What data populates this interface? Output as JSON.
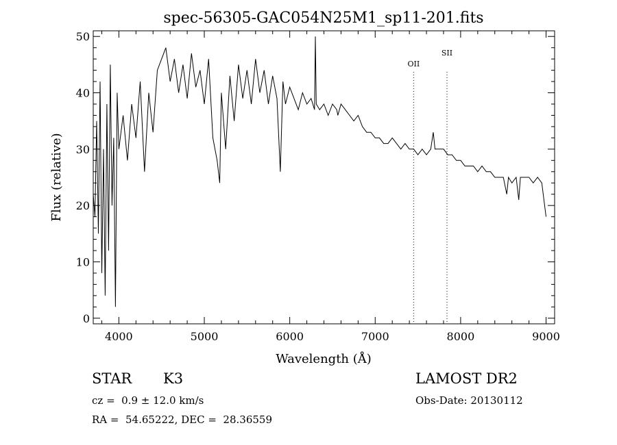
{
  "chart_data": {
    "type": "line",
    "title": "spec-56305-GAC054N25M1_sp11-201.fits",
    "xlabel": "Wavelength (Å)",
    "ylabel": "Flux (relative)",
    "xlim": [
      3700,
      9100
    ],
    "ylim": [
      -1,
      51
    ],
    "xticks": [
      4000,
      5000,
      6000,
      7000,
      8000,
      9000
    ],
    "yticks": [
      0,
      10,
      20,
      30,
      40,
      50
    ],
    "grid": false,
    "x": [
      3700,
      3720,
      3740,
      3760,
      3780,
      3800,
      3820,
      3840,
      3860,
      3880,
      3900,
      3920,
      3940,
      3960,
      3980,
      4000,
      4050,
      4100,
      4150,
      4200,
      4250,
      4300,
      4350,
      4400,
      4450,
      4500,
      4550,
      4600,
      4650,
      4700,
      4750,
      4800,
      4850,
      4900,
      4950,
      5000,
      5050,
      5100,
      5150,
      5180,
      5200,
      5250,
      5300,
      5350,
      5400,
      5450,
      5500,
      5550,
      5600,
      5650,
      5700,
      5750,
      5800,
      5850,
      5890,
      5920,
      5950,
      6000,
      6050,
      6100,
      6150,
      6200,
      6250,
      6290,
      6300,
      6310,
      6350,
      6400,
      6450,
      6500,
      6550,
      6563,
      6600,
      6650,
      6700,
      6750,
      6800,
      6850,
      6900,
      6950,
      7000,
      7050,
      7100,
      7150,
      7200,
      7250,
      7300,
      7350,
      7400,
      7450,
      7500,
      7550,
      7600,
      7650,
      7680,
      7700,
      7750,
      7800,
      7850,
      7900,
      7950,
      8000,
      8050,
      8100,
      8150,
      8200,
      8250,
      8300,
      8350,
      8400,
      8450,
      8500,
      8540,
      8560,
      8600,
      8650,
      8680,
      8700,
      8750,
      8800,
      8850,
      8900,
      8950,
      9000
    ],
    "y": [
      22,
      18,
      35,
      15,
      42,
      8,
      30,
      4,
      38,
      12,
      45,
      20,
      32,
      2,
      40,
      30,
      36,
      28,
      38,
      32,
      42,
      26,
      40,
      33,
      44,
      46,
      48,
      42,
      46,
      40,
      45,
      39,
      47,
      41,
      44,
      38,
      46,
      32,
      28,
      24,
      40,
      30,
      43,
      35,
      45,
      39,
      44,
      38,
      46,
      40,
      44,
      38,
      43,
      39,
      26,
      42,
      38,
      41,
      39,
      37,
      40,
      38,
      39,
      37,
      50,
      38,
      37,
      38,
      36,
      38,
      37,
      36,
      38,
      37,
      36,
      35,
      36,
      34,
      33,
      33,
      32,
      32,
      31,
      31,
      32,
      31,
      30,
      31,
      30,
      30,
      29,
      30,
      29,
      30,
      33,
      30,
      30,
      30,
      29,
      29,
      28,
      28,
      27,
      27,
      27,
      26,
      27,
      26,
      26,
      25,
      25,
      25,
      22,
      25,
      24,
      25,
      21,
      25,
      25,
      25,
      24,
      25,
      24,
      18
    ]
  },
  "footer": {
    "object_class": "STAR",
    "subclass": "K3",
    "survey": "LAMOST DR2",
    "velocity": "cz =  0.9 ± 12.0 km/s",
    "obs_date": "Obs-Date: 20130112",
    "coords": "RA =  54.65222, DEC =  28.36559"
  },
  "annotations": [
    {
      "label": "OII",
      "x": 7450
    },
    {
      "label": "SII",
      "x": 7840
    }
  ]
}
